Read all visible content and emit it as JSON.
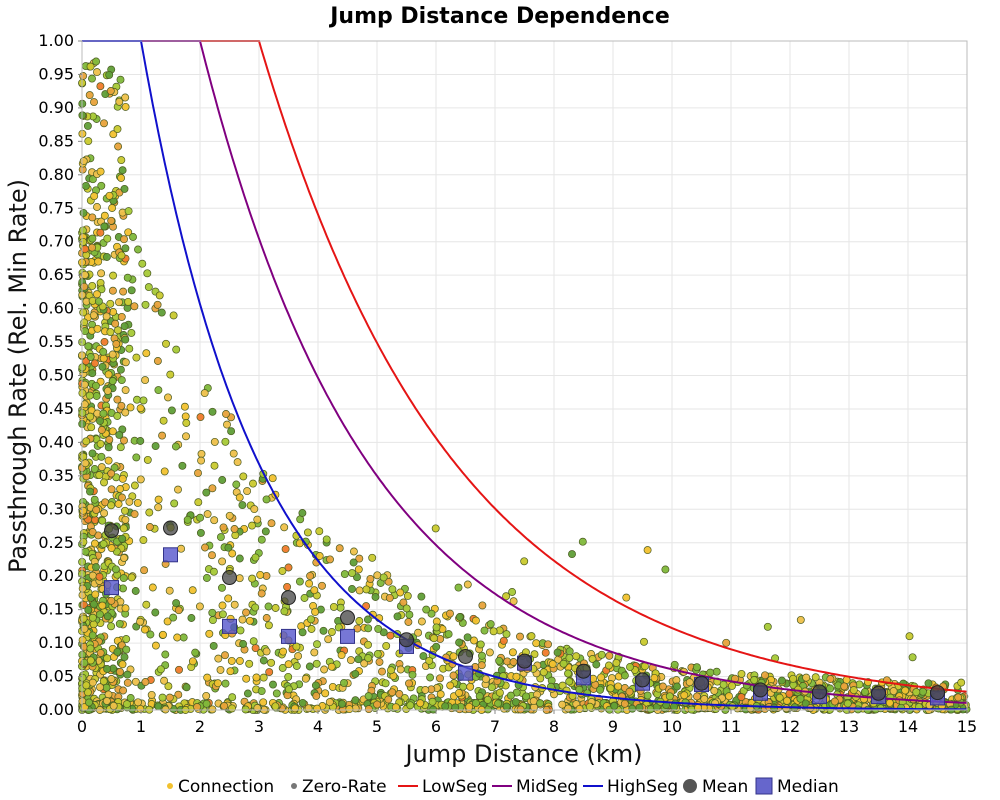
{
  "chart_data": {
    "type": "scatter",
    "title": "Jump Distance Dependence",
    "xlabel": "Jump Distance (km)",
    "ylabel": "Passthrough Rate (Rel. Min Rate)",
    "xlim": [
      0,
      15
    ],
    "ylim": [
      0,
      1
    ],
    "x_ticks": [
      "0",
      "1",
      "2",
      "3",
      "4",
      "5",
      "6",
      "7",
      "8",
      "9",
      "10",
      "11",
      "12",
      "13",
      "14",
      "15"
    ],
    "y_ticks": [
      "0.00",
      "0.05",
      "0.10",
      "0.15",
      "0.20",
      "0.25",
      "0.30",
      "0.35",
      "0.40",
      "0.45",
      "0.50",
      "0.55",
      "0.60",
      "0.65",
      "0.70",
      "0.75",
      "0.80",
      "0.85",
      "0.90",
      "0.95",
      "1.00"
    ],
    "grid": true,
    "legend_position": "bottom",
    "legend": [
      {
        "label": "Connection",
        "color": "#f2c12e",
        "kind": "dot"
      },
      {
        "label": "Zero-Rate",
        "color": "#777777",
        "kind": "dot"
      },
      {
        "label": "LowSeg",
        "color": "#e51515",
        "kind": "line"
      },
      {
        "label": "MidSeg",
        "color": "#800080",
        "kind": "line"
      },
      {
        "label": "HighSeg",
        "color": "#1010cc",
        "kind": "line"
      },
      {
        "label": "Mean",
        "color": "#555555",
        "kind": "circle"
      },
      {
        "label": "Median",
        "color": "#5555cc",
        "kind": "square"
      }
    ],
    "curves": [
      {
        "name": "LowSeg",
        "color": "#e51515",
        "formula": "y = exp(-0.3 * (x - 3))",
        "start_x": 3.0
      },
      {
        "name": "MidSeg",
        "color": "#800080",
        "formula": "y = exp(-0.35 * (x - 2))",
        "start_x": 2.0
      },
      {
        "name": "HighSeg",
        "color": "#1010cc",
        "formula": "y = exp(-0.5 * (x - 1))",
        "start_x": 1.0
      }
    ],
    "mean": {
      "x": [
        0.5,
        1.5,
        2.5,
        3.5,
        4.5,
        5.5,
        6.5,
        7.5,
        8.5,
        9.5,
        10.5,
        11.5,
        12.5,
        13.5,
        14.5
      ],
      "y": [
        0.268,
        0.272,
        0.198,
        0.168,
        0.138,
        0.105,
        0.08,
        0.073,
        0.058,
        0.045,
        0.04,
        0.03,
        0.027,
        0.025,
        0.026
      ]
    },
    "median": {
      "x": [
        0.5,
        1.5,
        2.5,
        3.5,
        4.5,
        5.5,
        6.5,
        7.5,
        8.5,
        9.5,
        10.5,
        11.5,
        12.5,
        13.5,
        14.5
      ],
      "y": [
        0.183,
        0.232,
        0.125,
        0.11,
        0.11,
        0.095,
        0.055,
        0.07,
        0.048,
        0.04,
        0.038,
        0.025,
        0.02,
        0.02,
        0.018
      ]
    },
    "scatter_colors": [
      "#f2c12e",
      "#c9c92e",
      "#a6c936",
      "#7fb83a",
      "#5f9e37",
      "#e8a23a",
      "#eec04a"
    ],
    "scatter_edge": "#4a5a20",
    "scatter_orange": "#f07a2a",
    "scatter_count": 2600,
    "scatter_seed": 12345
  }
}
